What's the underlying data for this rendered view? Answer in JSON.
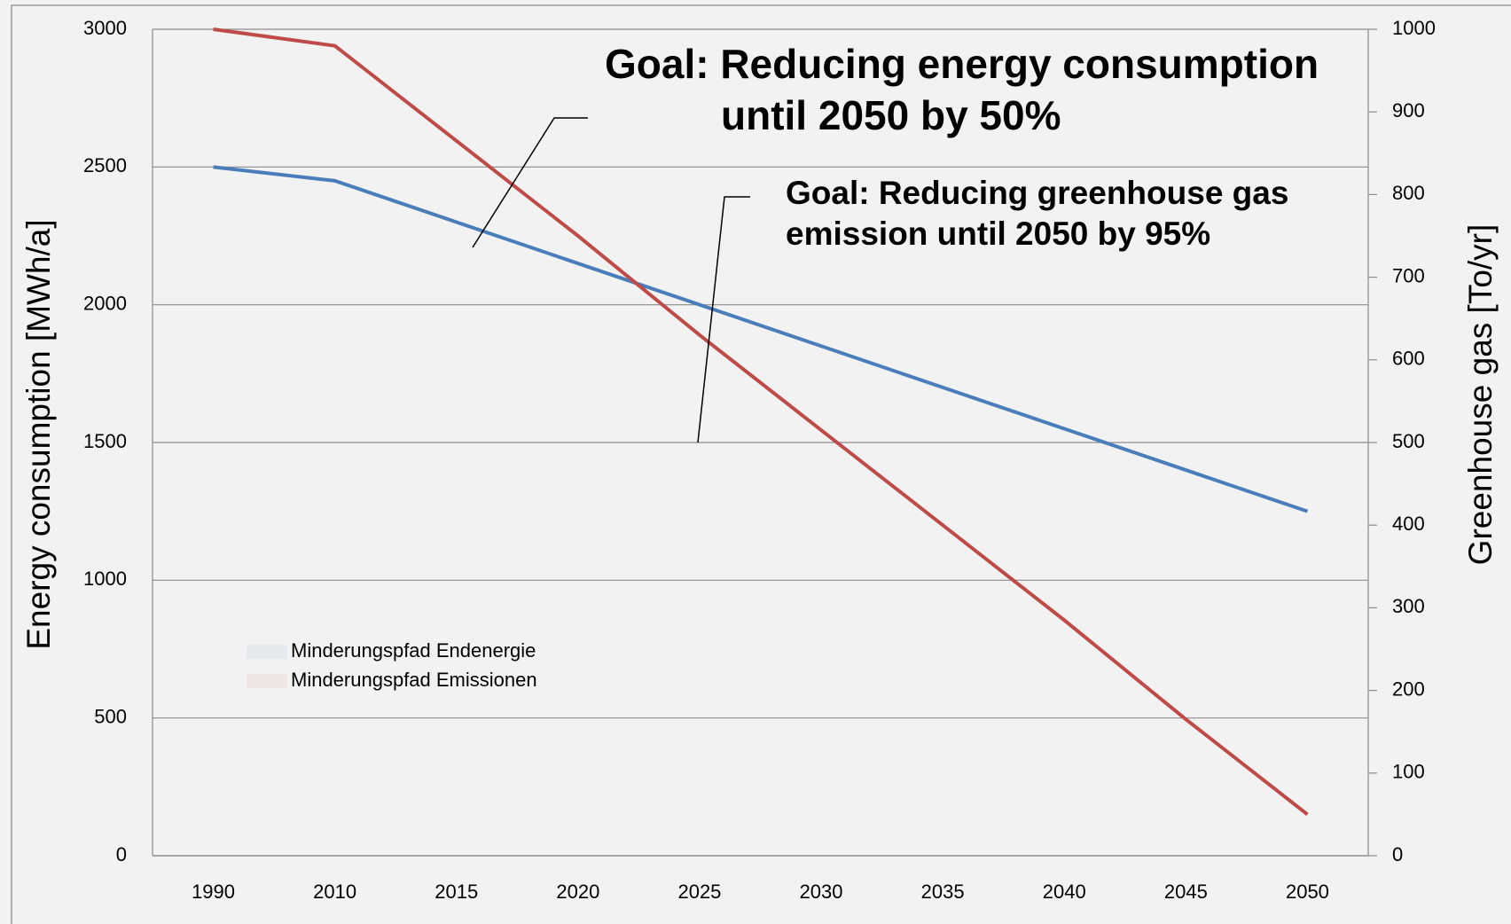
{
  "chart_data": {
    "type": "line",
    "categories": [
      "1990",
      "2010",
      "2015",
      "2020",
      "2025",
      "2030",
      "2035",
      "2040",
      "2045",
      "2050"
    ],
    "series": [
      {
        "name": "Minderungspfad Endenergie",
        "color": "#4a7ebb",
        "values": [
          2500,
          2450,
          2300,
          2150,
          2000,
          1850,
          1700,
          1550,
          1400,
          1250
        ]
      },
      {
        "name": "Minderungspfad Emissionen",
        "color": "#be4b48",
        "axis": "y2",
        "values": [
          1000,
          980,
          865,
          750,
          630,
          515,
          400,
          285,
          165,
          50
        ]
      }
    ],
    "ylabel": "Energy consumption [MWh/a]",
    "y2label": "Greenhouse gas [To/yr]",
    "ylim": [
      0,
      3000
    ],
    "yticks": [
      0,
      500,
      1000,
      1500,
      2000,
      2500,
      3000
    ],
    "y2lim": [
      0,
      1000
    ],
    "y2ticks": [
      0,
      100,
      200,
      300,
      400,
      500,
      600,
      700,
      800,
      900,
      1000
    ],
    "grid": true,
    "annotations": [
      {
        "lines": [
          "Goal: Reducing energy consumption",
          "until 2050 by 50%"
        ],
        "color": "#1f3fd0"
      },
      {
        "lines": [
          "Goal: Reducing greenhouse gas",
          "emission until 2050 by 95%"
        ],
        "color": "#c00000"
      }
    ]
  }
}
